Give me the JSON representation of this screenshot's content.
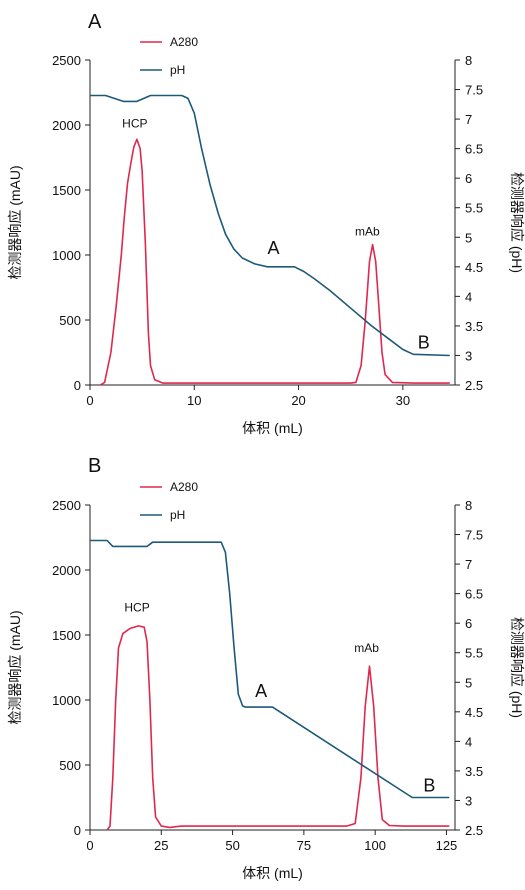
{
  "chart_data": [
    {
      "type": "line",
      "panel_label": "A",
      "xlabel": "体积 (mL)",
      "ylabel_left": "检测器响应 (mAU)",
      "ylabel_right": "检测器响应 (pH)",
      "xlim": [
        0,
        35
      ],
      "ylim_left": [
        0,
        2500
      ],
      "ylim_right": [
        2.5,
        8
      ],
      "x_ticks": [
        0,
        10,
        20,
        30
      ],
      "y_left_ticks": [
        0,
        500,
        1000,
        1500,
        2000,
        2500
      ],
      "y_right_ticks": [
        2.5,
        3,
        3.5,
        4,
        4.5,
        5,
        5.5,
        6,
        6.5,
        7,
        7.5,
        8
      ],
      "legend": [
        "A280",
        "pH"
      ],
      "series": [
        {
          "name": "A280",
          "axis": "left",
          "color": "#e0284f",
          "points": [
            [
              1,
              0
            ],
            [
              1.4,
              20
            ],
            [
              2,
              250
            ],
            [
              2.5,
              600
            ],
            [
              3,
              1000
            ],
            [
              3.3,
              1300
            ],
            [
              3.6,
              1550
            ],
            [
              3.9,
              1700
            ],
            [
              4.2,
              1830
            ],
            [
              4.5,
              1890
            ],
            [
              4.8,
              1820
            ],
            [
              5,
              1650
            ],
            [
              5.3,
              1100
            ],
            [
              5.6,
              400
            ],
            [
              5.8,
              150
            ],
            [
              6.2,
              40
            ],
            [
              7,
              15
            ],
            [
              10,
              15
            ],
            [
              20,
              15
            ],
            [
              25,
              15
            ],
            [
              25.5,
              20
            ],
            [
              26,
              150
            ],
            [
              26.4,
              500
            ],
            [
              26.8,
              950
            ],
            [
              27.1,
              1080
            ],
            [
              27.4,
              950
            ],
            [
              27.7,
              600
            ],
            [
              28,
              250
            ],
            [
              28.3,
              80
            ],
            [
              29,
              20
            ],
            [
              31,
              15
            ],
            [
              34.5,
              15
            ]
          ]
        },
        {
          "name": "pH",
          "axis": "right",
          "color": "#1d5a78",
          "points": [
            [
              0,
              7.4
            ],
            [
              1.5,
              7.4
            ],
            [
              3.2,
              7.3
            ],
            [
              4.5,
              7.3
            ],
            [
              5.8,
              7.4
            ],
            [
              8.8,
              7.4
            ],
            [
              9.4,
              7.35
            ],
            [
              10,
              7.1
            ],
            [
              10.7,
              6.5
            ],
            [
              11.5,
              5.9
            ],
            [
              12.3,
              5.4
            ],
            [
              13,
              5.05
            ],
            [
              13.8,
              4.8
            ],
            [
              14.6,
              4.65
            ],
            [
              15.8,
              4.55
            ],
            [
              17,
              4.5
            ],
            [
              19.6,
              4.5
            ],
            [
              20.5,
              4.42
            ],
            [
              21.5,
              4.3
            ],
            [
              23,
              4.1
            ],
            [
              25,
              3.8
            ],
            [
              27,
              3.5
            ],
            [
              28.5,
              3.3
            ],
            [
              30,
              3.1
            ],
            [
              31,
              3.02
            ],
            [
              34.5,
              3.0
            ]
          ]
        }
      ],
      "annotations": [
        "HCP",
        "mAb",
        "A",
        "B"
      ]
    },
    {
      "type": "line",
      "panel_label": "B",
      "xlabel": "体积 (mL)",
      "ylabel_left": "检测器响应 (mAU)",
      "ylabel_right": "检测器响应 (pH)",
      "xlim": [
        0,
        128
      ],
      "ylim_left": [
        0,
        2500
      ],
      "ylim_right": [
        2.5,
        8
      ],
      "x_ticks": [
        0,
        25,
        50,
        75,
        100,
        125
      ],
      "y_left_ticks": [
        0,
        500,
        1000,
        1500,
        2000,
        2500
      ],
      "y_right_ticks": [
        2.5,
        3,
        3.5,
        4,
        4.5,
        5,
        5.5,
        6,
        6.5,
        7,
        7.5,
        8
      ],
      "legend": [
        "A280",
        "pH"
      ],
      "series": [
        {
          "name": "A280",
          "axis": "left",
          "color": "#e0284f",
          "points": [
            [
              6,
              0
            ],
            [
              7,
              30
            ],
            [
              8,
              400
            ],
            [
              9,
              1000
            ],
            [
              10,
              1400
            ],
            [
              11.5,
              1510
            ],
            [
              14,
              1550
            ],
            [
              17,
              1570
            ],
            [
              19,
              1560
            ],
            [
              20,
              1450
            ],
            [
              21,
              1000
            ],
            [
              22,
              400
            ],
            [
              23,
              100
            ],
            [
              25,
              30
            ],
            [
              28,
              20
            ],
            [
              32,
              30
            ],
            [
              60,
              30
            ],
            [
              90,
              30
            ],
            [
              93,
              50
            ],
            [
              95,
              400
            ],
            [
              96.5,
              950
            ],
            [
              98,
              1260
            ],
            [
              99.5,
              950
            ],
            [
              101,
              400
            ],
            [
              102.5,
              80
            ],
            [
              105,
              35
            ],
            [
              110,
              30
            ],
            [
              126,
              30
            ]
          ]
        },
        {
          "name": "pH",
          "axis": "right",
          "color": "#1d5a78",
          "points": [
            [
              0,
              7.4
            ],
            [
              6,
              7.4
            ],
            [
              8,
              7.3
            ],
            [
              20,
              7.3
            ],
            [
              22,
              7.37
            ],
            [
              46,
              7.37
            ],
            [
              47.5,
              7.2
            ],
            [
              49,
              6.5
            ],
            [
              50.5,
              5.6
            ],
            [
              52,
              4.8
            ],
            [
              53.5,
              4.6
            ],
            [
              54.5,
              4.58
            ],
            [
              64,
              4.58
            ],
            [
              113,
              3.05
            ],
            [
              126,
              3.05
            ]
          ]
        }
      ],
      "annotations": [
        "HCP",
        "mAb",
        "A",
        "B"
      ]
    }
  ]
}
